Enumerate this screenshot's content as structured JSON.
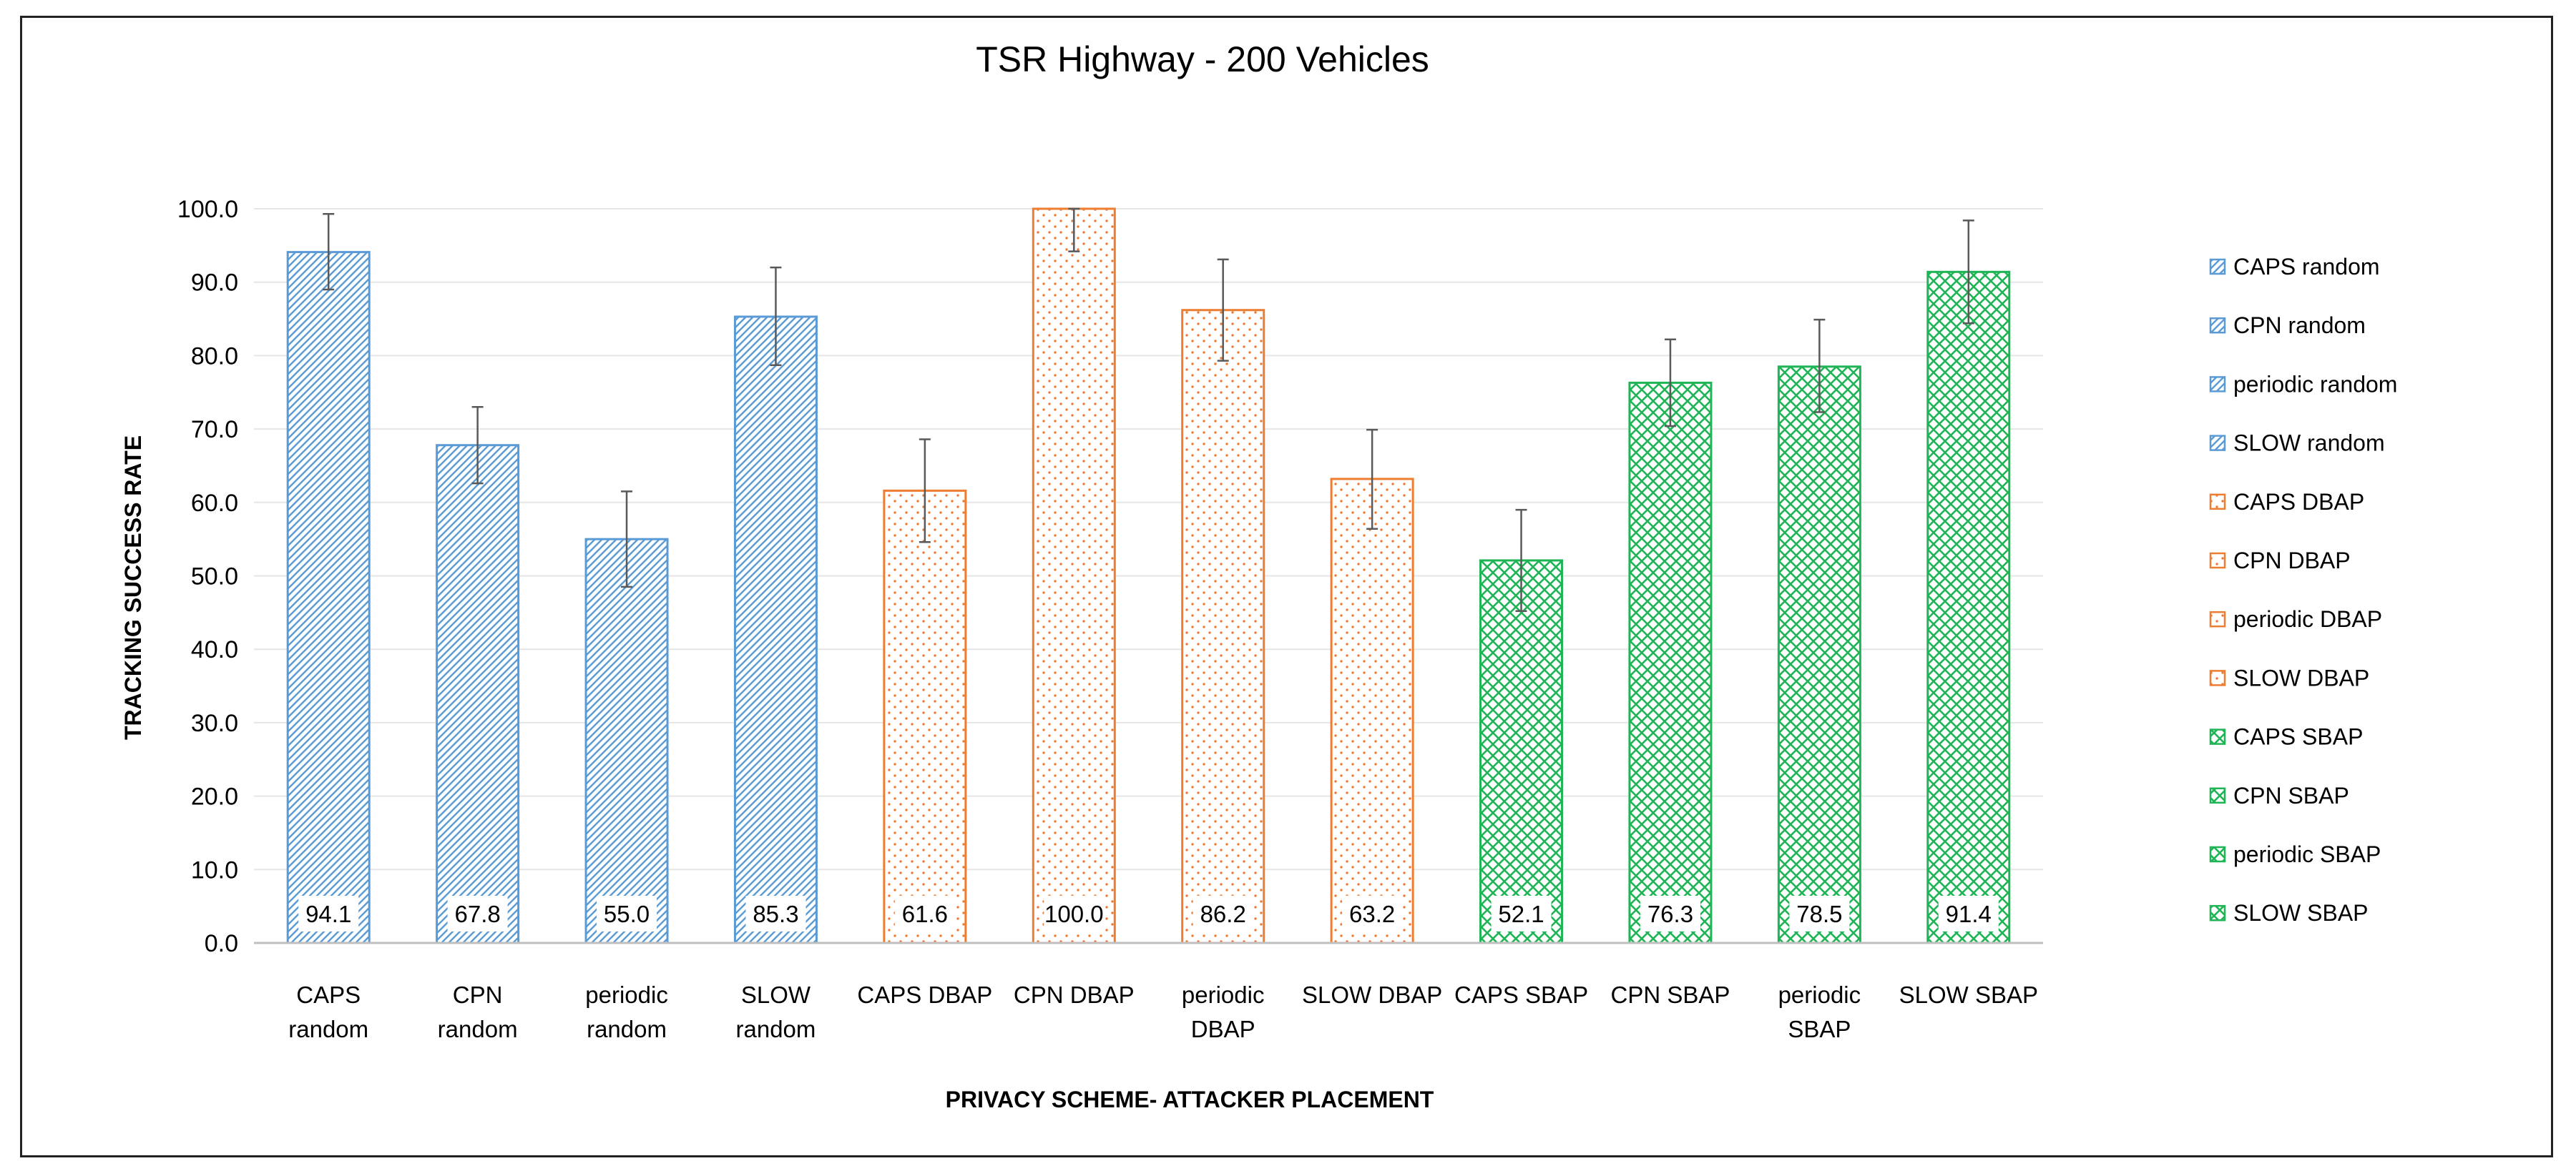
{
  "chart_data": {
    "type": "bar",
    "title": "TSR Highway - 200 Vehicles",
    "xlabel": "PRIVACY SCHEME-  ATTACKER PLACEMENT",
    "ylabel": "TRACKING SUCCESS RATE",
    "ylim": [
      0,
      100
    ],
    "ytick_step": 10,
    "ytick_labels": [
      "0.0",
      "10.0",
      "20.0",
      "30.0",
      "40.0",
      "50.0",
      "60.0",
      "70.0",
      "80.0",
      "90.0",
      "100.0"
    ],
    "grid": true,
    "legend_position": "right",
    "categories": [
      [
        "CAPS",
        "random"
      ],
      [
        "CPN",
        "random"
      ],
      [
        "periodic",
        "random"
      ],
      [
        "SLOW",
        "random"
      ],
      [
        "CAPS DBAP"
      ],
      [
        "CPN DBAP"
      ],
      [
        "periodic",
        "DBAP"
      ],
      [
        "SLOW DBAP"
      ],
      [
        "CAPS SBAP"
      ],
      [
        "CPN SBAP"
      ],
      [
        "periodic",
        "SBAP"
      ],
      [
        "SLOW SBAP"
      ]
    ],
    "values": [
      94.1,
      67.8,
      55.0,
      85.3,
      61.6,
      100.0,
      86.2,
      63.2,
      52.1,
      76.3,
      78.5,
      91.4
    ],
    "value_labels": [
      "94.1",
      "67.8",
      "55.0",
      "85.3",
      "61.6",
      "100.0",
      "86.2",
      "63.2",
      "52.1",
      "76.3",
      "78.5",
      "91.4"
    ],
    "error_low": [
      89.0,
      62.6,
      48.5,
      78.7,
      54.6,
      94.2,
      79.3,
      56.4,
      45.2,
      70.4,
      72.3,
      84.4
    ],
    "error_high": [
      99.3,
      73.0,
      61.5,
      92.0,
      68.6,
      100.0,
      93.1,
      69.9,
      59.0,
      82.2,
      84.9,
      98.4
    ],
    "groups": [
      "random",
      "random",
      "random",
      "random",
      "DBAP",
      "DBAP",
      "DBAP",
      "DBAP",
      "SBAP",
      "SBAP",
      "SBAP",
      "SBAP"
    ],
    "series": [
      {
        "name": "CAPS random",
        "group": "random"
      },
      {
        "name": "CPN random",
        "group": "random"
      },
      {
        "name": "periodic random",
        "group": "random"
      },
      {
        "name": "SLOW random",
        "group": "random"
      },
      {
        "name": "CAPS DBAP",
        "group": "DBAP"
      },
      {
        "name": "CPN DBAP",
        "group": "DBAP"
      },
      {
        "name": "periodic DBAP",
        "group": "DBAP"
      },
      {
        "name": "SLOW DBAP",
        "group": "DBAP"
      },
      {
        "name": "CAPS SBAP",
        "group": "SBAP"
      },
      {
        "name": "CPN SBAP",
        "group": "SBAP"
      },
      {
        "name": "periodic SBAP",
        "group": "SBAP"
      },
      {
        "name": "SLOW SBAP",
        "group": "SBAP"
      }
    ],
    "colors": {
      "random": "#5B9BD5",
      "DBAP": "#ED7D31",
      "SBAP": "#1FB455"
    },
    "gridline_color": "#e6e6e6",
    "axis_color": "#bfbfbf",
    "errorbar_color": "#595959"
  }
}
